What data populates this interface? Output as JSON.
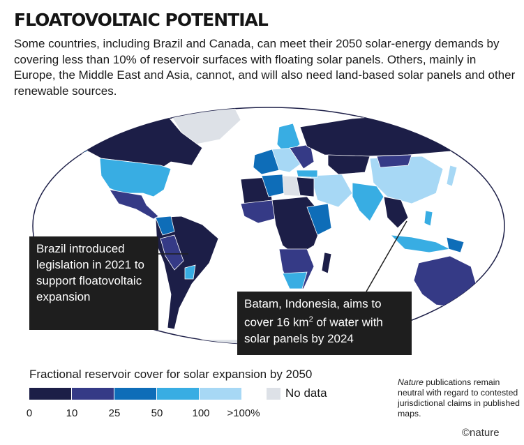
{
  "title": "FLOATOVOLTAIC POTENTIAL",
  "subtitle": "Some countries, including Brazil and Canada, can meet their 2050 solar-energy demands by covering less than 10% of reservoir surfaces with floating solar panels. Others, mainly in Europe, the Middle East and Asia, cannot, and will also need land-based solar panels and other renewable sources.",
  "callouts": {
    "brazil": "Brazil introduced legislation in 2021 to support floatovoltaic expansion",
    "batam_prefix": "Batam, Indonesia, aims to cover 16 km",
    "batam_sup": "2",
    "batam_suffix": " of water with solar panels by 2024"
  },
  "legend": {
    "title": "Fractional reservoir cover for solar expansion by 2050",
    "ticks": [
      "0",
      "10",
      "25",
      "50",
      "100",
      ">100%"
    ],
    "colors": [
      "#1c1e47",
      "#353a86",
      "#0e6db8",
      "#38ade3",
      "#a7d8f5"
    ],
    "no_data_label": "No data",
    "no_data_color": "#dde1e7"
  },
  "disclaimer": {
    "italic": "Nature",
    "rest": " publications remain neutral with regard to contested jurisdictional claims in published maps."
  },
  "brand": "©nature"
}
